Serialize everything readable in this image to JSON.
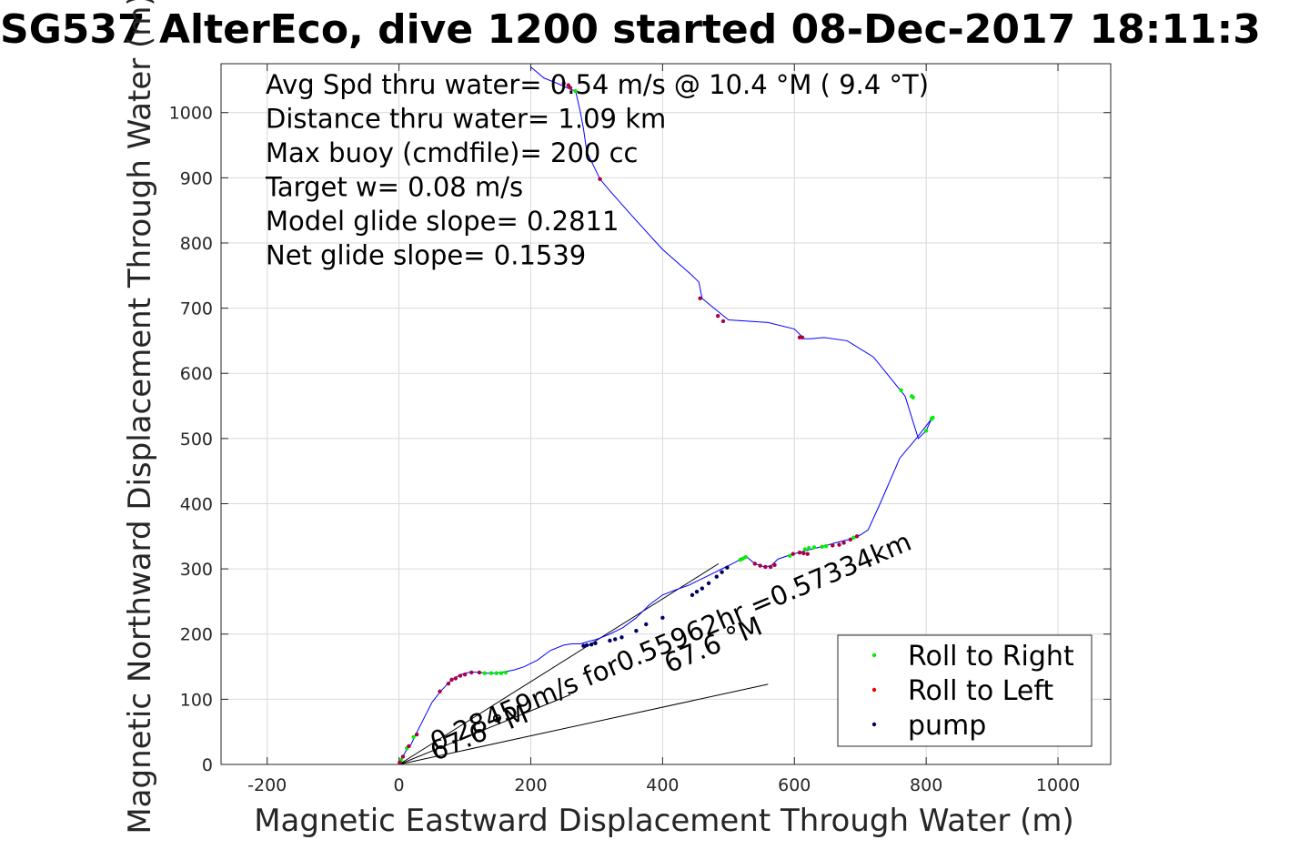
{
  "chart_data": {
    "type": "scatter",
    "title": "SG537 AlterEco, dive 1200 started 08-Dec-2017 18:11:3",
    "xlabel": "Magnetic Eastward Displacement Through Water (m)",
    "ylabel": "Magnetic Northward Displacement Through Water (m)",
    "xlim": [
      -270,
      1080
    ],
    "ylim": [
      0,
      1075
    ],
    "xticks": [
      -200,
      0,
      200,
      400,
      600,
      800,
      1000
    ],
    "yticks": [
      0,
      100,
      200,
      300,
      400,
      500,
      600,
      700,
      800,
      900,
      1000
    ],
    "grid": true,
    "stats_text": [
      "Avg Spd thru water=  0.54 m/s @  10.4 °M (  9.4 °T)",
      "Distance thru water=  1.09 km",
      "Max buoy (cmdfile)= 200 cc",
      "Target w= 0.08 m/s",
      "Model glide slope= 0.2811",
      "Net glide slope= 0.1539"
    ],
    "annotations": [
      {
        "text": "0.28459m/s for0.55962hr =0.57334km",
        "at": [
          55,
          20
        ],
        "angle_deg": 23
      },
      {
        "text": "67.6 °M",
        "at": [
          410,
          140
        ],
        "angle_deg": 23
      },
      {
        "text": "67.6 °M",
        "at": [
          55,
          5
        ],
        "angle_deg": 23
      }
    ],
    "legend": {
      "placement": "bottom-right",
      "entries": [
        {
          "label": "Roll to Right",
          "color": "#00ee00"
        },
        {
          "label": "Roll to Left",
          "color": "#ee0000"
        },
        {
          "label": "pump",
          "color": "#000066"
        }
      ]
    },
    "colors": {
      "track": "#0000ff",
      "current_lines": "#000000",
      "roll_left_markers": "#aa0044"
    },
    "track": {
      "name": "Displacement Through Water",
      "x": [
        0,
        2,
        5,
        10,
        18,
        25,
        35,
        50,
        63,
        75,
        80,
        85,
        92,
        100,
        110,
        122,
        134,
        148,
        160,
        175,
        190,
        210,
        230,
        250,
        262,
        275,
        285,
        300,
        320,
        340,
        360,
        380,
        400,
        420,
        440,
        460,
        470,
        480,
        490,
        500,
        510,
        520,
        528,
        540,
        555,
        565,
        575,
        595,
        625,
        645,
        662,
        682,
        700,
        712,
        730,
        760,
        785,
        808,
        800,
        788,
        768,
        720,
        680,
        645,
        625,
        615,
        600,
        560,
        500,
        478,
        460,
        455,
        445,
        400,
        355,
        320,
        305,
        285,
        280,
        275,
        268,
        255,
        240,
        220,
        200
      ],
      "y": [
        0,
        5,
        10,
        20,
        30,
        45,
        65,
        95,
        112,
        125,
        130,
        133,
        137,
        140,
        142,
        141,
        140,
        140,
        142,
        145,
        150,
        160,
        175,
        183,
        185,
        185,
        188,
        192,
        200,
        210,
        225,
        245,
        260,
        268,
        275,
        285,
        290,
        295,
        300,
        305,
        310,
        316,
        318,
        308,
        303,
        305,
        315,
        322,
        330,
        335,
        340,
        345,
        352,
        360,
        400,
        470,
        500,
        530,
        512,
        500,
        565,
        625,
        650,
        655,
        653,
        653,
        668,
        678,
        682,
        700,
        715,
        740,
        750,
        790,
        840,
        880,
        898,
        940,
        975,
        1002,
        1033,
        1038,
        1045,
        1053,
        1070
      ]
    },
    "markers": {
      "roll_right": {
        "x": [
          3,
          12,
          22,
          130,
          140,
          148,
          155,
          162,
          518,
          522,
          526,
          593,
          616,
          622,
          630,
          642,
          648,
          658,
          690,
          762,
          778,
          780,
          800,
          808,
          810,
          268
        ],
        "y": [
          7,
          25,
          42,
          140,
          140,
          140,
          140,
          141,
          314,
          316,
          318,
          320,
          330,
          332,
          333,
          334,
          335,
          336,
          348,
          574,
          565,
          563,
          512,
          530,
          532,
          1033
        ]
      },
      "roll_left": {
        "x": [
          1,
          6,
          15,
          27,
          62,
          75,
          80,
          86,
          93,
          100,
          110,
          122,
          540,
          548,
          556,
          564,
          570,
          598,
          608,
          614,
          620,
          658,
          668,
          675,
          685,
          695,
          305,
          457,
          484,
          492,
          608,
          612,
          260,
          250,
          257
        ],
        "y": [
          3,
          12,
          28,
          46,
          112,
          124,
          130,
          132,
          136,
          138,
          141,
          141,
          308,
          305,
          303,
          303,
          306,
          323,
          325,
          324,
          323,
          336,
          337,
          340,
          345,
          350,
          898,
          715,
          688,
          680,
          655,
          655,
          1038,
          1045,
          1042
        ]
      },
      "pump": {
        "x": [
          280,
          285,
          292,
          298,
          320,
          328,
          338,
          360,
          375,
          400,
          445,
          452,
          460,
          470,
          482,
          490,
          498
        ],
        "y": [
          182,
          183,
          184,
          186,
          190,
          192,
          195,
          205,
          215,
          225,
          260,
          265,
          270,
          278,
          288,
          295,
          302
        ]
      }
    },
    "current_lines": [
      {
        "x": [
          0,
          485
        ],
        "y": [
          0,
          308
        ]
      },
      {
        "x": [
          0,
          560
        ],
        "y": [
          0,
          123
        ]
      },
      {
        "x": [
          0,
          260
        ],
        "y": [
          0,
          107
        ]
      }
    ]
  }
}
